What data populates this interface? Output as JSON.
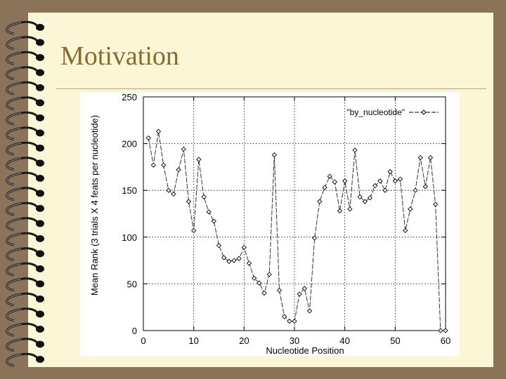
{
  "slide": {
    "title": "Motivation"
  },
  "colors": {
    "background": "#8a7359",
    "slide": "#fbf6d6",
    "title": "#8b6a2e",
    "line": "#333333"
  },
  "chart_data": {
    "type": "line",
    "xlabel": "Nucleotide Position",
    "ylabel": "Mean Rank (3 trials X 4 feats per nucleotide)",
    "xlim": [
      0,
      60
    ],
    "ylim": [
      0,
      250
    ],
    "xticks": [
      0,
      10,
      20,
      30,
      40,
      50,
      60
    ],
    "yticks": [
      0,
      50,
      100,
      150,
      200,
      250
    ],
    "grid": true,
    "legend": "top-right",
    "series": [
      {
        "name": "\"by_nucleotide\"",
        "x": [
          1,
          2,
          3,
          4,
          5,
          6,
          7,
          8,
          9,
          10,
          11,
          12,
          13,
          14,
          15,
          16,
          17,
          18,
          19,
          20,
          21,
          22,
          23,
          24,
          25,
          26,
          27,
          28,
          29,
          30,
          31,
          32,
          33,
          34,
          35,
          36,
          37,
          38,
          39,
          40,
          41,
          42,
          43,
          44,
          45,
          46,
          47,
          48,
          49,
          50,
          51,
          52,
          53,
          54,
          55,
          56,
          57,
          58,
          59,
          60
        ],
        "y": [
          206,
          177,
          213,
          177,
          150,
          146,
          172,
          194,
          138,
          107,
          183,
          143,
          127,
          117,
          91,
          78,
          74,
          75,
          77,
          89,
          72,
          56,
          51,
          40,
          60,
          188,
          43,
          15,
          10,
          10,
          39,
          45,
          21,
          99,
          138,
          153,
          165,
          159,
          128,
          160,
          130,
          193,
          143,
          138,
          142,
          155,
          160,
          150,
          170,
          160,
          162,
          107,
          130,
          150,
          185,
          154,
          185,
          135,
          0,
          0
        ]
      }
    ]
  }
}
